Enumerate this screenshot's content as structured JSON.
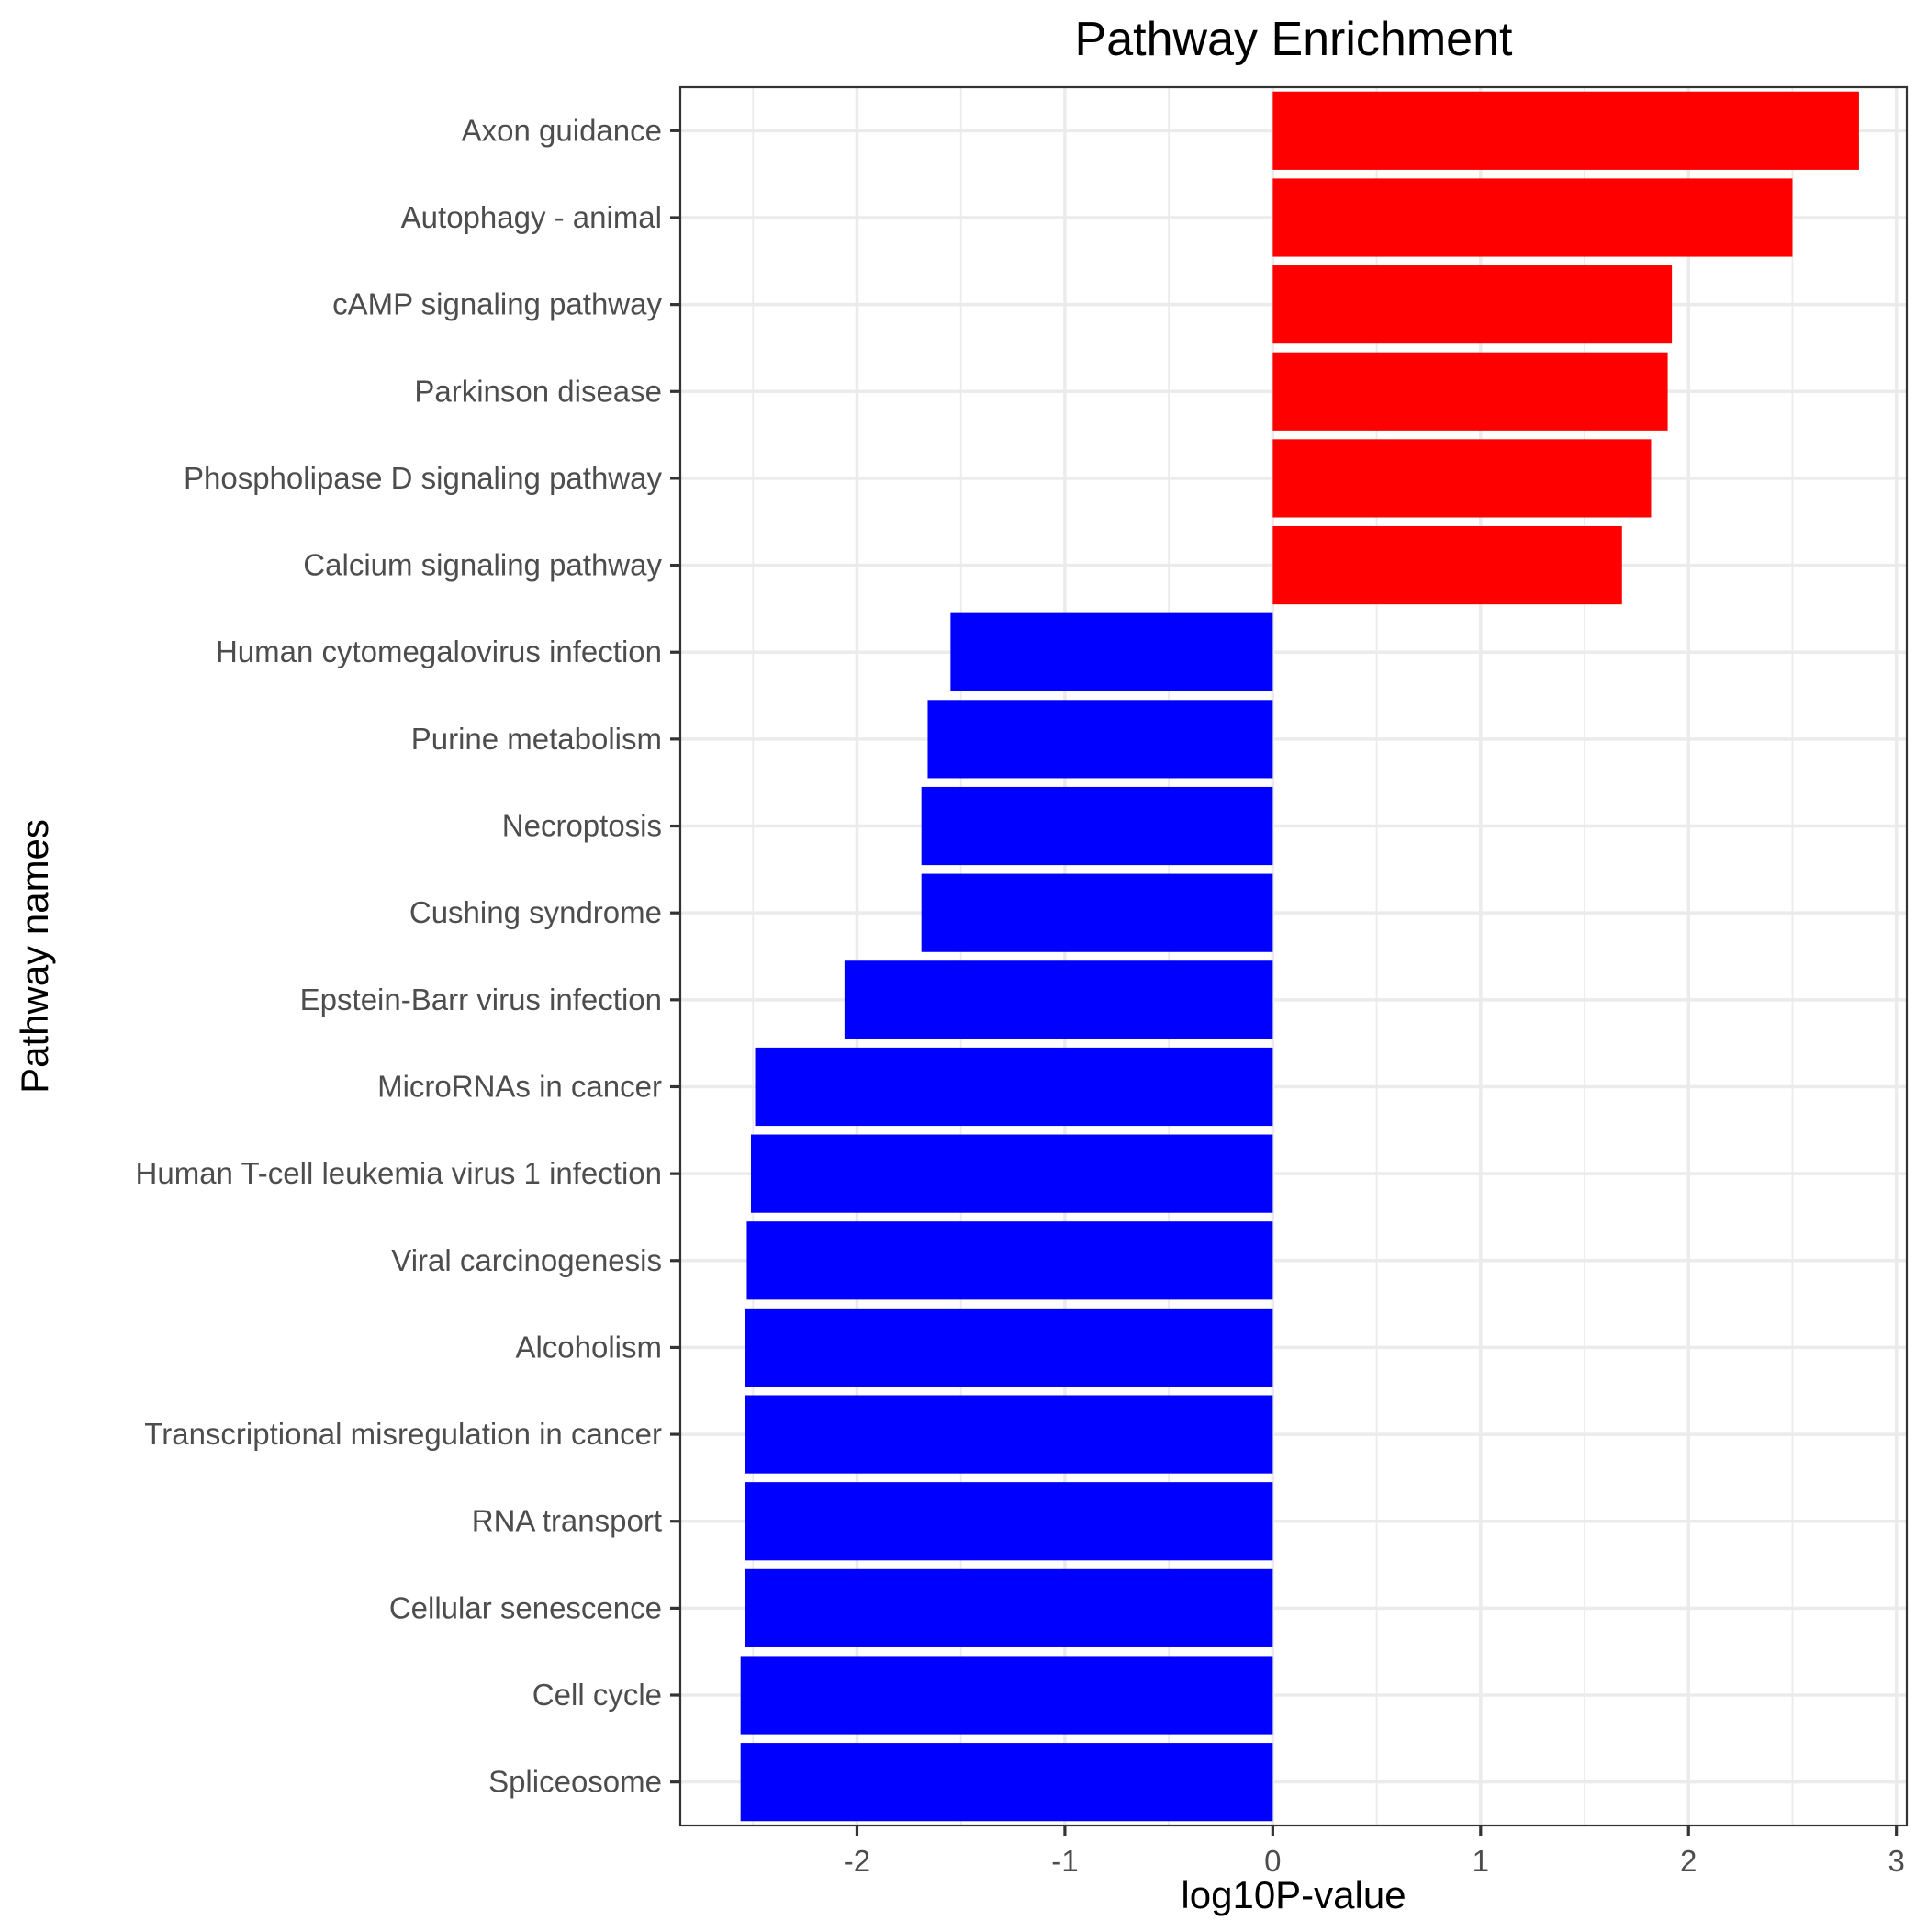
{
  "chart_data": {
    "type": "bar",
    "orientation": "horizontal",
    "title": "Pathway Enrichment",
    "xlabel": "log10P-value",
    "ylabel": "Pathway names",
    "xlim": [
      -2.85,
      3.05
    ],
    "x_ticks": [
      -2,
      -1,
      0,
      1,
      2,
      3
    ],
    "x_tick_labels": [
      "-2",
      "-1",
      "0",
      "1",
      "2",
      "3"
    ],
    "grid": true,
    "legend": "none",
    "positive_color": "#ff0000",
    "negative_color": "#0000ff",
    "categories": [
      "Axon guidance",
      "Autophagy - animal",
      "cAMP signaling pathway",
      "Parkinson disease",
      "Phospholipase D signaling pathway",
      "Calcium signaling pathway",
      "Human cytomegalovirus infection",
      "Purine metabolism",
      "Necroptosis",
      "Cushing syndrome",
      "Epstein-Barr virus infection",
      "MicroRNAs in cancer",
      "Human T-cell leukemia virus 1 infection",
      "Viral carcinogenesis",
      "Alcoholism",
      "Transcriptional misregulation in cancer",
      "RNA transport",
      "Cellular senescence",
      "Cell cycle",
      "Spliceosome"
    ],
    "values": [
      2.82,
      2.5,
      1.92,
      1.9,
      1.82,
      1.68,
      -1.55,
      -1.66,
      -1.69,
      -1.69,
      -2.06,
      -2.49,
      -2.51,
      -2.53,
      -2.54,
      -2.54,
      -2.54,
      -2.54,
      -2.56,
      -2.56
    ]
  }
}
